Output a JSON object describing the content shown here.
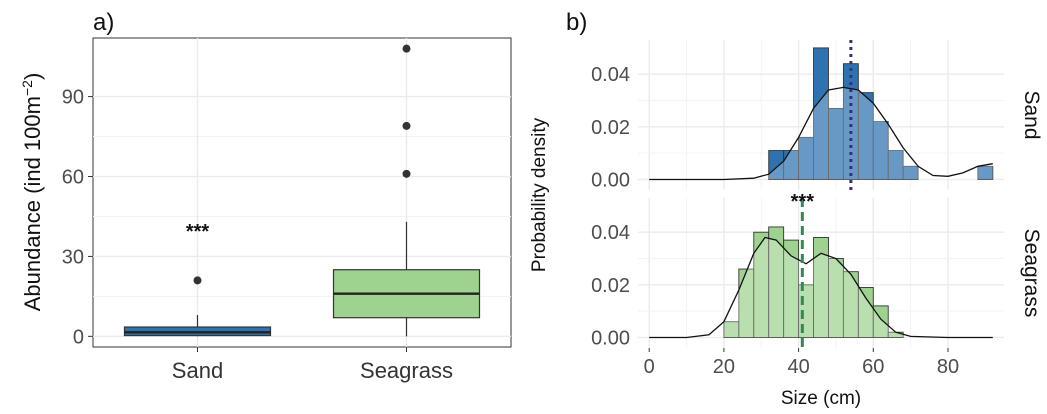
{
  "panels": {
    "a_label": "a)",
    "b_label": "b)"
  },
  "colors": {
    "sand": "#2e72b0",
    "seagrass": "#9ed38f",
    "sand_line": "#3a2f7a",
    "seagrass_line": "#2e8b57",
    "grid": "#ebebeb"
  },
  "chart_data": [
    {
      "type": "box",
      "panel": "a)",
      "ylabel": "Abundance (ind 100m",
      "ylabel_sup": "−2",
      "ylabel_close": ")",
      "categories": [
        "Sand",
        "Seagrass"
      ],
      "yticks": [
        "0",
        "30",
        "60",
        "90"
      ],
      "ylim": [
        -4,
        112
      ],
      "boxes": [
        {
          "name": "Sand",
          "min": 0,
          "q1": 0.3,
          "median": 1.5,
          "q3": 3.5,
          "max": 8,
          "outliers": [
            21
          ],
          "annotation": "***",
          "annotation_y": 37
        },
        {
          "name": "Seagrass",
          "min": 0,
          "q1": 7,
          "median": 16,
          "q3": 25,
          "max": 43,
          "outliers": [
            61,
            79,
            108
          ]
        }
      ]
    },
    {
      "type": "histogram_density",
      "panel": "b)",
      "xlabel": "Size (cm)",
      "ylabel": "Probability density",
      "xticks": [
        "0",
        "20",
        "40",
        "60",
        "80"
      ],
      "yticks": [
        "0.00",
        "0.02",
        "0.04"
      ],
      "xlim": [
        -3,
        95
      ],
      "ylim": [
        -0.004,
        0.053
      ],
      "bin_width": 4,
      "facets": [
        {
          "name": "Sand",
          "mean_line_x": 54,
          "bins": [
            {
              "x0": 32,
              "density": 0.011
            },
            {
              "x0": 36,
              "density": 0.011
            },
            {
              "x0": 40,
              "density": 0.016
            },
            {
              "x0": 44,
              "density": 0.05
            },
            {
              "x0": 48,
              "density": 0.027
            },
            {
              "x0": 52,
              "density": 0.044
            },
            {
              "x0": 56,
              "density": 0.033
            },
            {
              "x0": 60,
              "density": 0.022
            },
            {
              "x0": 64,
              "density": 0.011
            },
            {
              "x0": 68,
              "density": 0.005
            },
            {
              "x0": 88,
              "density": 0.005
            }
          ],
          "density_curve": [
            [
              0,
              0
            ],
            [
              20,
              0
            ],
            [
              28,
              0.0005
            ],
            [
              32,
              0.002
            ],
            [
              36,
              0.007
            ],
            [
              40,
              0.016
            ],
            [
              44,
              0.027
            ],
            [
              48,
              0.034
            ],
            [
              52,
              0.035
            ],
            [
              56,
              0.034
            ],
            [
              60,
              0.029
            ],
            [
              64,
              0.021
            ],
            [
              68,
              0.012
            ],
            [
              72,
              0.005
            ],
            [
              76,
              0.0015
            ],
            [
              80,
              0.0012
            ],
            [
              84,
              0.0025
            ],
            [
              88,
              0.005
            ],
            [
              92,
              0.006
            ]
          ]
        },
        {
          "name": "Seagrass",
          "mean_line_x": 41,
          "annotation": "***",
          "bins": [
            {
              "x0": 20,
              "density": 0.006
            },
            {
              "x0": 24,
              "density": 0.026
            },
            {
              "x0": 28,
              "density": 0.04
            },
            {
              "x0": 32,
              "density": 0.042
            },
            {
              "x0": 36,
              "density": 0.037
            },
            {
              "x0": 40,
              "density": 0.02
            },
            {
              "x0": 44,
              "density": 0.038
            },
            {
              "x0": 48,
              "density": 0.03
            },
            {
              "x0": 52,
              "density": 0.025
            },
            {
              "x0": 56,
              "density": 0.019
            },
            {
              "x0": 60,
              "density": 0.012
            },
            {
              "x0": 64,
              "density": 0.002
            }
          ],
          "density_curve": [
            [
              0,
              0
            ],
            [
              10,
              0
            ],
            [
              16,
              0.001
            ],
            [
              20,
              0.006
            ],
            [
              24,
              0.018
            ],
            [
              28,
              0.032
            ],
            [
              31,
              0.038
            ],
            [
              34,
              0.037
            ],
            [
              38,
              0.031
            ],
            [
              42,
              0.028
            ],
            [
              46,
              0.032
            ],
            [
              50,
              0.03
            ],
            [
              54,
              0.024
            ],
            [
              58,
              0.015
            ],
            [
              62,
              0.007
            ],
            [
              66,
              0.002
            ],
            [
              70,
              0.0004
            ],
            [
              80,
              0
            ],
            [
              92,
              0
            ]
          ]
        }
      ]
    }
  ]
}
